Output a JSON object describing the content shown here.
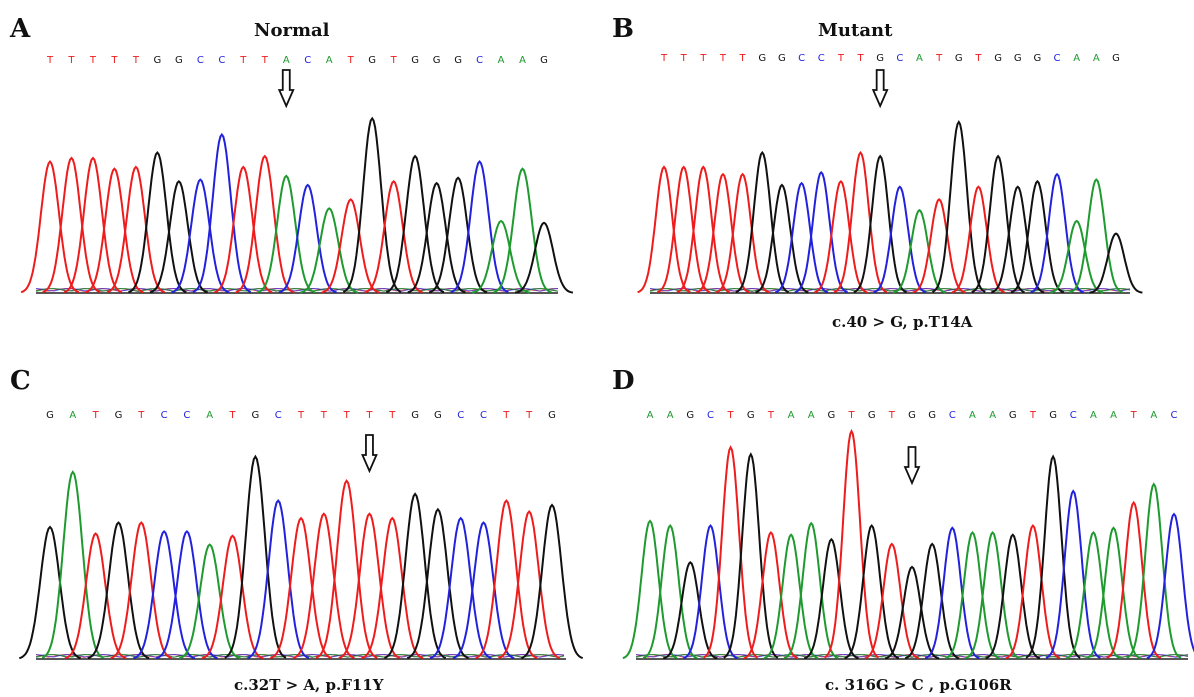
{
  "colors": {
    "A": "#1f9a2f",
    "C": "#2222dd",
    "G": "#111111",
    "T": "#ee1c1c"
  },
  "panels": [
    {
      "id": "A",
      "letter": "A",
      "title": "Normal",
      "caption": "",
      "sequence": [
        "T",
        "T",
        "T",
        "T",
        "T",
        "G",
        "G",
        "C",
        "C",
        "T",
        "T",
        "A",
        "C",
        "A",
        "T",
        "G",
        "T",
        "G",
        "G",
        "G",
        "C",
        "A",
        "A",
        "G"
      ],
      "heights": [
        0.73,
        0.75,
        0.75,
        0.69,
        0.7,
        0.78,
        0.62,
        0.63,
        0.88,
        0.7,
        0.76,
        0.65,
        0.6,
        0.47,
        0.52,
        0.97,
        0.62,
        0.76,
        0.61,
        0.64,
        0.73,
        0.4,
        0.69,
        0.39
      ],
      "arrow_index": 11
    },
    {
      "id": "B",
      "letter": "B",
      "title": "Mutant",
      "caption": "c.40 > G, p.T14A",
      "sequence": [
        "T",
        "T",
        "T",
        "T",
        "T",
        "G",
        "G",
        "C",
        "C",
        "T",
        "T",
        "G",
        "C",
        "A",
        "T",
        "G",
        "T",
        "G",
        "G",
        "G",
        "C",
        "A",
        "A",
        "G"
      ],
      "heights": [
        0.7,
        0.7,
        0.7,
        0.66,
        0.66,
        0.78,
        0.6,
        0.61,
        0.67,
        0.62,
        0.78,
        0.76,
        0.59,
        0.46,
        0.52,
        0.95,
        0.59,
        0.76,
        0.59,
        0.62,
        0.66,
        0.4,
        0.63,
        0.33
      ],
      "arrow_index": 11
    },
    {
      "id": "C",
      "letter": "C",
      "title": "",
      "caption": "c.32T > A, p.F11Y",
      "sequence": [
        "G",
        "A",
        "T",
        "G",
        "T",
        "C",
        "C",
        "A",
        "T",
        "G",
        "C",
        "T",
        "T",
        "T",
        "T",
        "T",
        "G",
        "G",
        "C",
        "C",
        "T",
        "T",
        "G"
      ],
      "heights": [
        0.6,
        0.85,
        0.57,
        0.62,
        0.62,
        0.58,
        0.58,
        0.52,
        0.56,
        0.92,
        0.72,
        0.64,
        0.66,
        0.81,
        0.66,
        0.64,
        0.75,
        0.68,
        0.64,
        0.62,
        0.72,
        0.67,
        0.7
      ],
      "arrow_index": 14
    },
    {
      "id": "D",
      "letter": "D",
      "title": "",
      "caption": "c. 316G > C , p.G106R",
      "sequence": [
        "A",
        "A",
        "G",
        "C",
        "T",
        "G",
        "T",
        "A",
        "A",
        "G",
        "T",
        "G",
        "T",
        "G",
        "G",
        "C",
        "A",
        "A",
        "G",
        "T",
        "G",
        "C",
        "A",
        "A",
        "T",
        "A",
        "C"
      ],
      "heights": [
        0.6,
        0.58,
        0.42,
        0.58,
        0.92,
        0.89,
        0.55,
        0.54,
        0.59,
        0.52,
        0.99,
        0.58,
        0.5,
        0.4,
        0.5,
        0.57,
        0.55,
        0.55,
        0.54,
        0.58,
        0.88,
        0.73,
        0.55,
        0.57,
        0.68,
        0.76,
        0.63
      ],
      "arrow_index": 13
    }
  ]
}
